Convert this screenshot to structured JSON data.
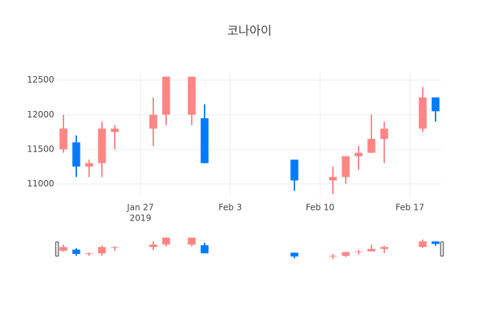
{
  "chart_data": {
    "type": "candlestick",
    "title": "코나아이",
    "x": [
      "2019-01-21",
      "2019-01-22",
      "2019-01-23",
      "2019-01-24",
      "2019-01-25",
      "2019-01-28",
      "2019-01-29",
      "2019-01-31",
      "2019-02-01",
      "2019-02-08",
      "2019-02-11",
      "2019-02-12",
      "2019-02-13",
      "2019-02-14",
      "2019-02-15",
      "2019-02-18",
      "2019-02-19"
    ],
    "open": [
      11500,
      11600,
      11250,
      11300,
      11750,
      11800,
      12000,
      12000,
      11950,
      11350,
      11050,
      11100,
      11400,
      11450,
      11650,
      11800,
      12250
    ],
    "high": [
      12000,
      11700,
      11350,
      11900,
      11850,
      12250,
      12550,
      12550,
      12150,
      11350,
      11250,
      11400,
      11550,
      12000,
      11900,
      12400,
      12250
    ],
    "low": [
      11450,
      11100,
      11100,
      11100,
      11500,
      11550,
      11850,
      11850,
      11300,
      10900,
      10850,
      11000,
      11200,
      11450,
      11300,
      11750,
      11900
    ],
    "close": [
      11800,
      11250,
      11300,
      11800,
      11800,
      12000,
      12550,
      12550,
      11300,
      11050,
      11100,
      11400,
      11450,
      11650,
      11800,
      12250,
      12050
    ],
    "increasing_color": "#FF8585",
    "decreasing_color": "#007BFF",
    "xlim": [
      "2019-01-20T12:00:00Z",
      "2019-02-19T12:00:00Z"
    ],
    "xticks": [
      {
        "value": "2019-01-27",
        "label": "Jan 27"
      },
      {
        "value": "2019-02-03",
        "label": "Feb 3"
      },
      {
        "value": "2019-02-10",
        "label": "Feb 10"
      },
      {
        "value": "2019-02-17",
        "label": "Feb 17"
      }
    ],
    "x_year_label": "2019",
    "ylim": [
      10830,
      12630
    ],
    "yticks": [
      11000,
      11500,
      12000,
      12500
    ],
    "grid": true,
    "range_slider": true
  }
}
